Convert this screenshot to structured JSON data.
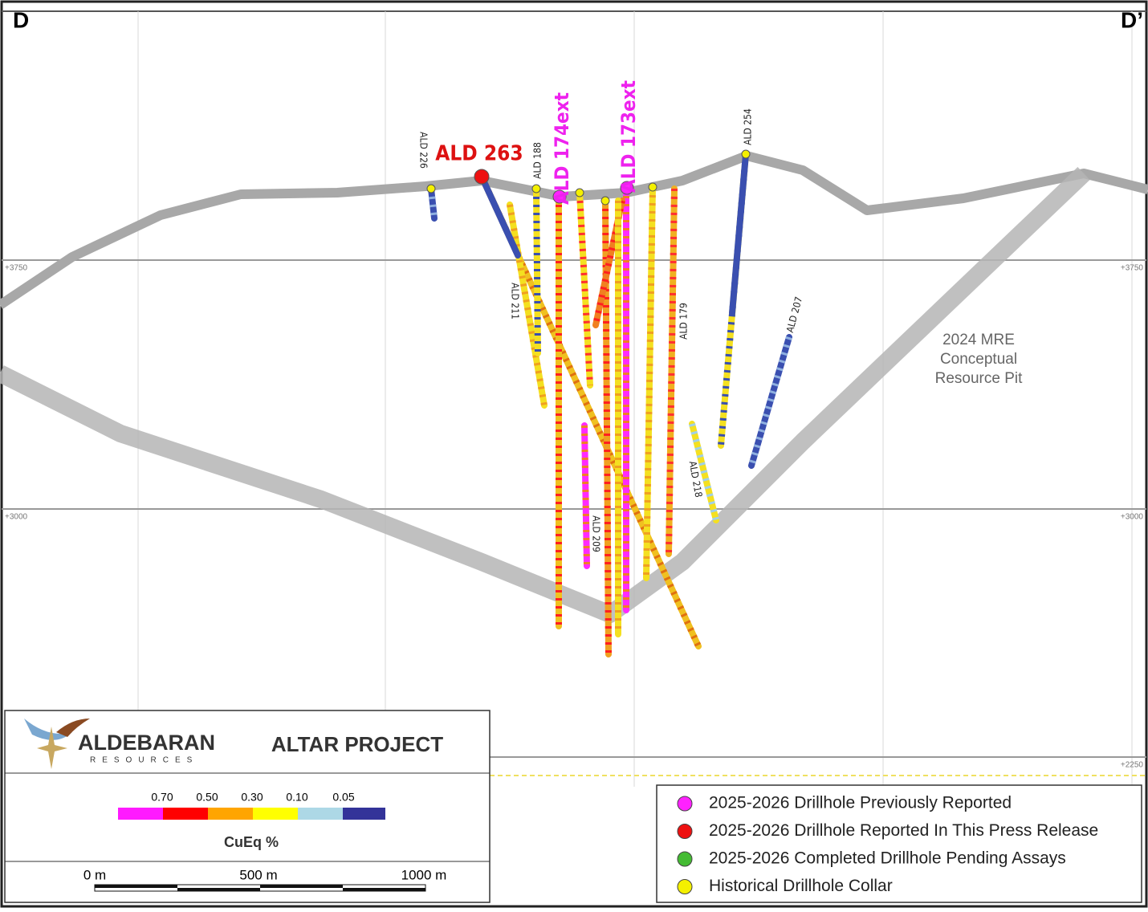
{
  "section": {
    "left": "D",
    "right": "D’"
  },
  "elevations": [
    "+3750",
    "+3000",
    "+2250"
  ],
  "drillholes": [
    {
      "label": "ALD 226"
    },
    {
      "label": "ALD 263"
    },
    {
      "label": "ALD 188"
    },
    {
      "label": "ALD 174ext"
    },
    {
      "label": "ALD 173ext"
    },
    {
      "label": "ALD 254"
    },
    {
      "label": "ALD 211"
    },
    {
      "label": "ALD 179"
    },
    {
      "label": "ALD 207"
    },
    {
      "label": "ALD 218"
    },
    {
      "label": "ALD 209"
    }
  ],
  "pit_label": [
    "2024 MRE",
    "Conceptual",
    "Resource Pit"
  ],
  "title_block": {
    "company": "ALDEBARAN",
    "company_sub": "RESOURCES",
    "project": "ALTAR PROJECT"
  },
  "grade_legend": {
    "thresholds": [
      "0.70",
      "0.50",
      "0.30",
      "0.10",
      "0.05"
    ],
    "title": "CuEq %"
  },
  "scale_bar": [
    "0 m",
    "500 m",
    "1000 m"
  ],
  "legend": [
    "2025-2026 Drillhole Previously Reported",
    "2025-2026 Drillhole Reported In This Press Release",
    "2025-2026 Completed Drillhole Pending Assays",
    "Historical Drillhole Collar"
  ]
}
